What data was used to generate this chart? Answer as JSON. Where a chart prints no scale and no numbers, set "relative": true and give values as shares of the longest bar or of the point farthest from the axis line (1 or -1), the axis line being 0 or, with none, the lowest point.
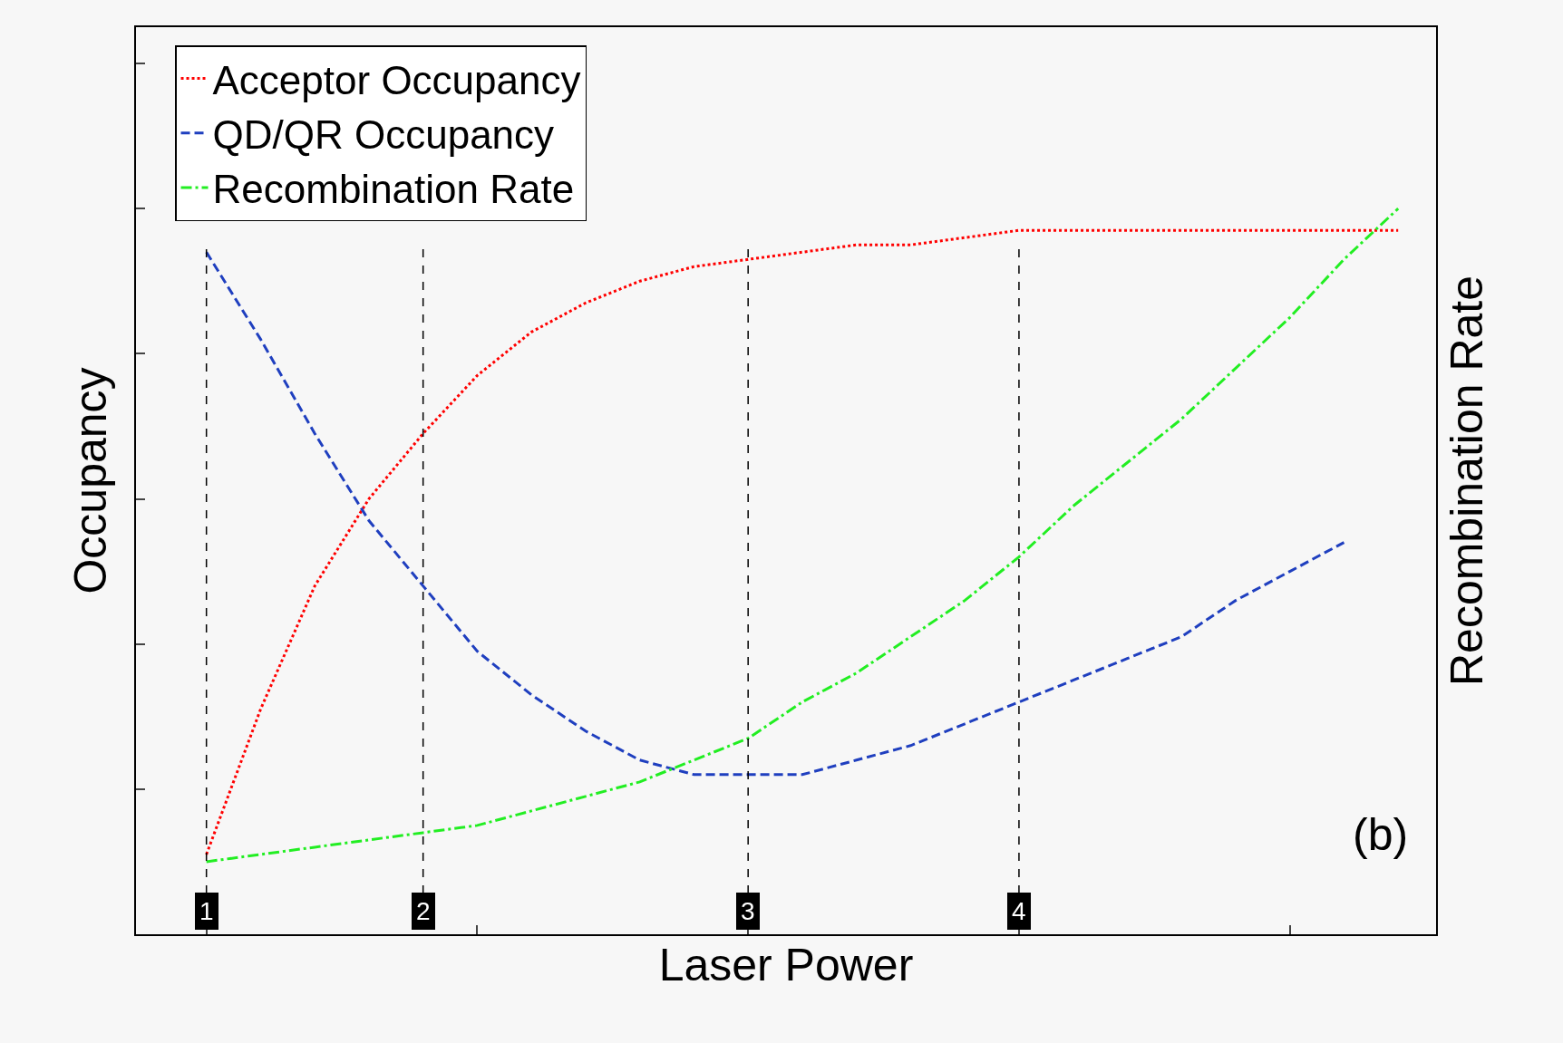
{
  "chart_data": {
    "type": "line",
    "relative": true,
    "xlabel": "Laser Power",
    "ylabel": "Occupancy",
    "y2label": "Recombination Rate",
    "categories": [
      "1",
      null,
      null,
      null,
      "2",
      null,
      null,
      null,
      null,
      null,
      "3",
      null,
      null,
      null,
      null,
      "4",
      null,
      null,
      null,
      null,
      null,
      null,
      null
    ],
    "series": [
      {
        "name": "Acceptor Occupancy",
        "color": "#ff0000",
        "line_style": "dotted",
        "values": [
          0.11,
          0.31,
          0.48,
          0.6,
          0.69,
          0.77,
          0.83,
          0.87,
          0.9,
          0.92,
          0.93,
          0.94,
          0.95,
          0.95,
          0.96,
          0.97,
          0.97,
          0.97,
          0.97,
          0.97,
          0.97,
          0.97,
          0.97
        ]
      },
      {
        "name": "QD/QR Occupancy",
        "color": "#1f3fbf",
        "line_style": "dashed",
        "values": [
          0.94,
          0.82,
          0.69,
          0.57,
          0.48,
          0.39,
          0.33,
          0.28,
          0.24,
          0.22,
          0.22,
          0.22,
          0.24,
          0.26,
          0.29,
          0.32,
          0.35,
          0.38,
          0.41,
          0.46,
          0.5,
          0.54,
          null
        ]
      },
      {
        "name": "Recombination Rate",
        "color": "#22ee22",
        "line_style": "dashdot",
        "values": [
          0.1,
          0.11,
          0.12,
          0.13,
          0.14,
          0.15,
          0.17,
          0.19,
          0.21,
          0.24,
          0.27,
          0.32,
          0.36,
          0.41,
          0.46,
          0.52,
          0.59,
          0.65,
          0.71,
          0.78,
          0.85,
          0.93,
          1.0
        ]
      }
    ],
    "ref_lines": [
      {
        "axis": "x",
        "value": "1"
      },
      {
        "axis": "x",
        "value": "2"
      },
      {
        "axis": "x",
        "value": "3"
      },
      {
        "axis": "x",
        "value": "4"
      }
    ],
    "annotations": [
      "(b)"
    ],
    "legend": "top left",
    "tick_labels": "x",
    "marker": "none",
    "grid": false
  }
}
